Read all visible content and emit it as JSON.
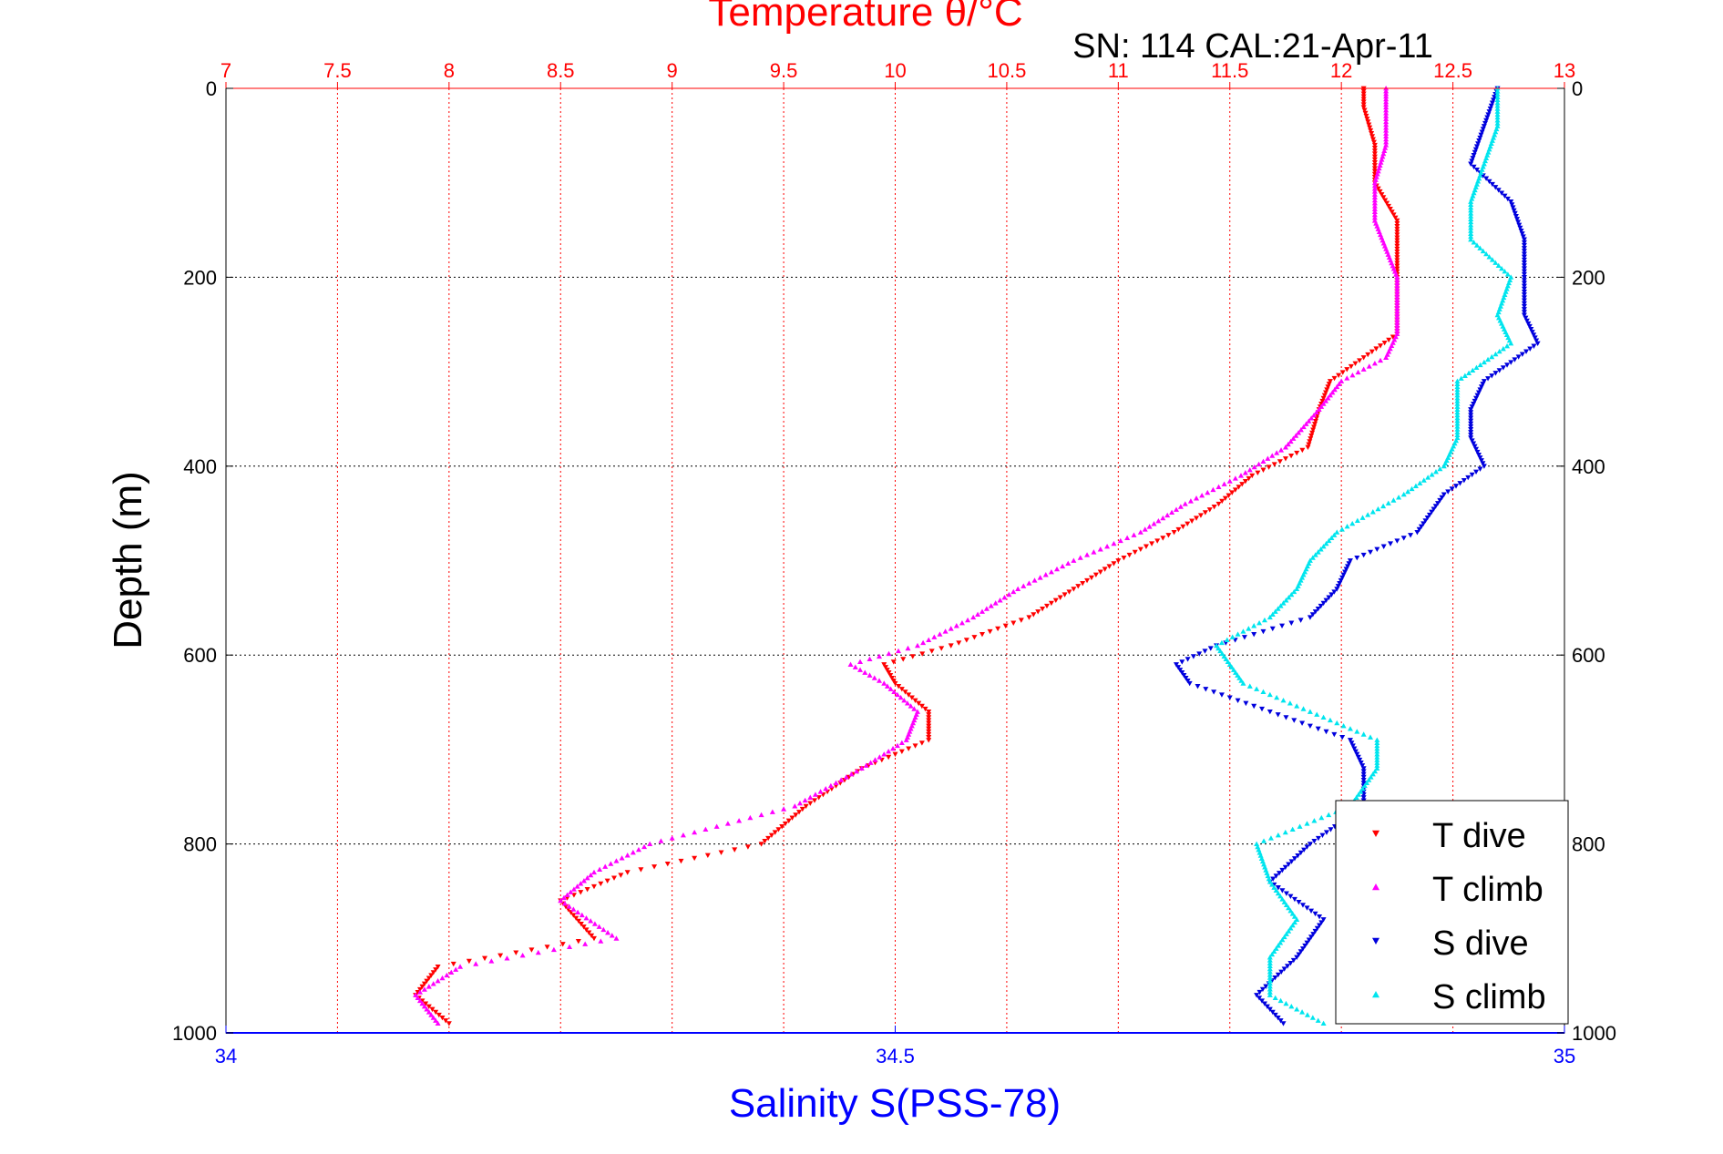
{
  "figure": {
    "top_title": "Temperature θ/°C",
    "subtitle": "SN: 114  CAL:21-Apr-11",
    "ylabel": "Depth (m)",
    "xlabel_bottom": "Salinity S(PSS-78)"
  },
  "colors": {
    "temperature_axis": "#ff0000",
    "salinity_axis": "#0000ff",
    "t_dive": "#ff0000",
    "t_climb": "#ff00ff",
    "s_dive": "#0000dd",
    "s_climb": "#00e5ee"
  },
  "chart_data": {
    "type": "scatter",
    "title": "Temperature θ/°C",
    "subtitle": "SN: 114  CAL:21-Apr-11",
    "ylabel": "Depth (m)",
    "xlabel_top": "Temperature θ/°C",
    "xlabel_bottom": "Salinity S(PSS-78)",
    "y_reversed": true,
    "ylim": [
      0,
      1000
    ],
    "yticks": [
      "0",
      "200",
      "400",
      "600",
      "800",
      "1000"
    ],
    "temperature_xlim": [
      7,
      13
    ],
    "temperature_ticks": [
      "7",
      "7.5",
      "8",
      "8.5",
      "9",
      "9.5",
      "10",
      "10.5",
      "11",
      "11.5",
      "12",
      "12.5",
      "13"
    ],
    "salinity_xlim": [
      34,
      35
    ],
    "salinity_ticks": [
      "34",
      "34.5",
      "35"
    ],
    "grid": true,
    "legend_position": "bottom-right",
    "legend": [
      "T dive",
      "T climb",
      "S dive",
      "S climb"
    ],
    "series": [
      {
        "name": "T dive",
        "axis": "temperature",
        "marker": "triangle-down",
        "depth": [
          0,
          20,
          60,
          100,
          140,
          200,
          260,
          285,
          310,
          340,
          380,
          410,
          440,
          470,
          500,
          530,
          560,
          590,
          610,
          630,
          660,
          690,
          720,
          760,
          800,
          830,
          860,
          900,
          930,
          960,
          990
        ],
        "values": [
          12.1,
          12.1,
          12.15,
          12.15,
          12.25,
          12.25,
          12.25,
          12.1,
          11.95,
          11.9,
          11.85,
          11.6,
          11.45,
          11.25,
          11.0,
          10.8,
          10.6,
          10.25,
          9.95,
          10.0,
          10.15,
          10.15,
          9.85,
          9.6,
          9.4,
          8.8,
          8.5,
          8.65,
          7.95,
          7.85,
          8.0
        ]
      },
      {
        "name": "T climb",
        "axis": "temperature",
        "marker": "triangle-up",
        "depth": [
          0,
          20,
          60,
          100,
          140,
          200,
          260,
          285,
          310,
          340,
          380,
          410,
          440,
          470,
          500,
          530,
          560,
          590,
          610,
          630,
          660,
          690,
          720,
          760,
          800,
          830,
          860,
          900,
          930,
          960,
          990
        ],
        "values": [
          12.2,
          12.2,
          12.2,
          12.15,
          12.15,
          12.25,
          12.25,
          12.2,
          12.0,
          11.9,
          11.75,
          11.55,
          11.3,
          11.1,
          10.8,
          10.55,
          10.35,
          10.1,
          9.8,
          9.95,
          10.1,
          10.05,
          9.85,
          9.55,
          8.9,
          8.65,
          8.5,
          8.75,
          8.05,
          7.85,
          7.95
        ]
      },
      {
        "name": "S dive",
        "axis": "salinity",
        "marker": "triangle-down",
        "depth": [
          0,
          40,
          80,
          120,
          160,
          200,
          240,
          270,
          290,
          310,
          340,
          370,
          400,
          430,
          470,
          500,
          530,
          560,
          590,
          610,
          630,
          660,
          690,
          720,
          760,
          800,
          840,
          880,
          920,
          960,
          990
        ],
        "values": [
          34.95,
          34.94,
          34.93,
          34.96,
          34.97,
          34.97,
          34.97,
          34.98,
          34.96,
          34.94,
          34.93,
          34.93,
          34.94,
          34.91,
          34.89,
          34.84,
          34.83,
          34.81,
          34.74,
          34.71,
          34.72,
          34.78,
          34.84,
          34.85,
          34.85,
          34.81,
          34.78,
          34.82,
          34.8,
          34.77,
          34.79
        ]
      },
      {
        "name": "S climb",
        "axis": "salinity",
        "marker": "triangle-up",
        "depth": [
          0,
          40,
          80,
          120,
          160,
          200,
          240,
          270,
          290,
          310,
          340,
          370,
          400,
          430,
          470,
          500,
          530,
          560,
          590,
          610,
          630,
          660,
          690,
          720,
          760,
          800,
          840,
          880,
          920,
          960,
          990
        ],
        "values": [
          34.95,
          34.95,
          34.94,
          34.93,
          34.93,
          34.96,
          34.95,
          34.96,
          34.94,
          34.92,
          34.92,
          34.92,
          34.91,
          34.88,
          34.83,
          34.81,
          34.8,
          34.78,
          34.74,
          34.75,
          34.76,
          34.81,
          34.86,
          34.86,
          34.84,
          34.77,
          34.78,
          34.8,
          34.78,
          34.78,
          34.82
        ]
      }
    ]
  }
}
